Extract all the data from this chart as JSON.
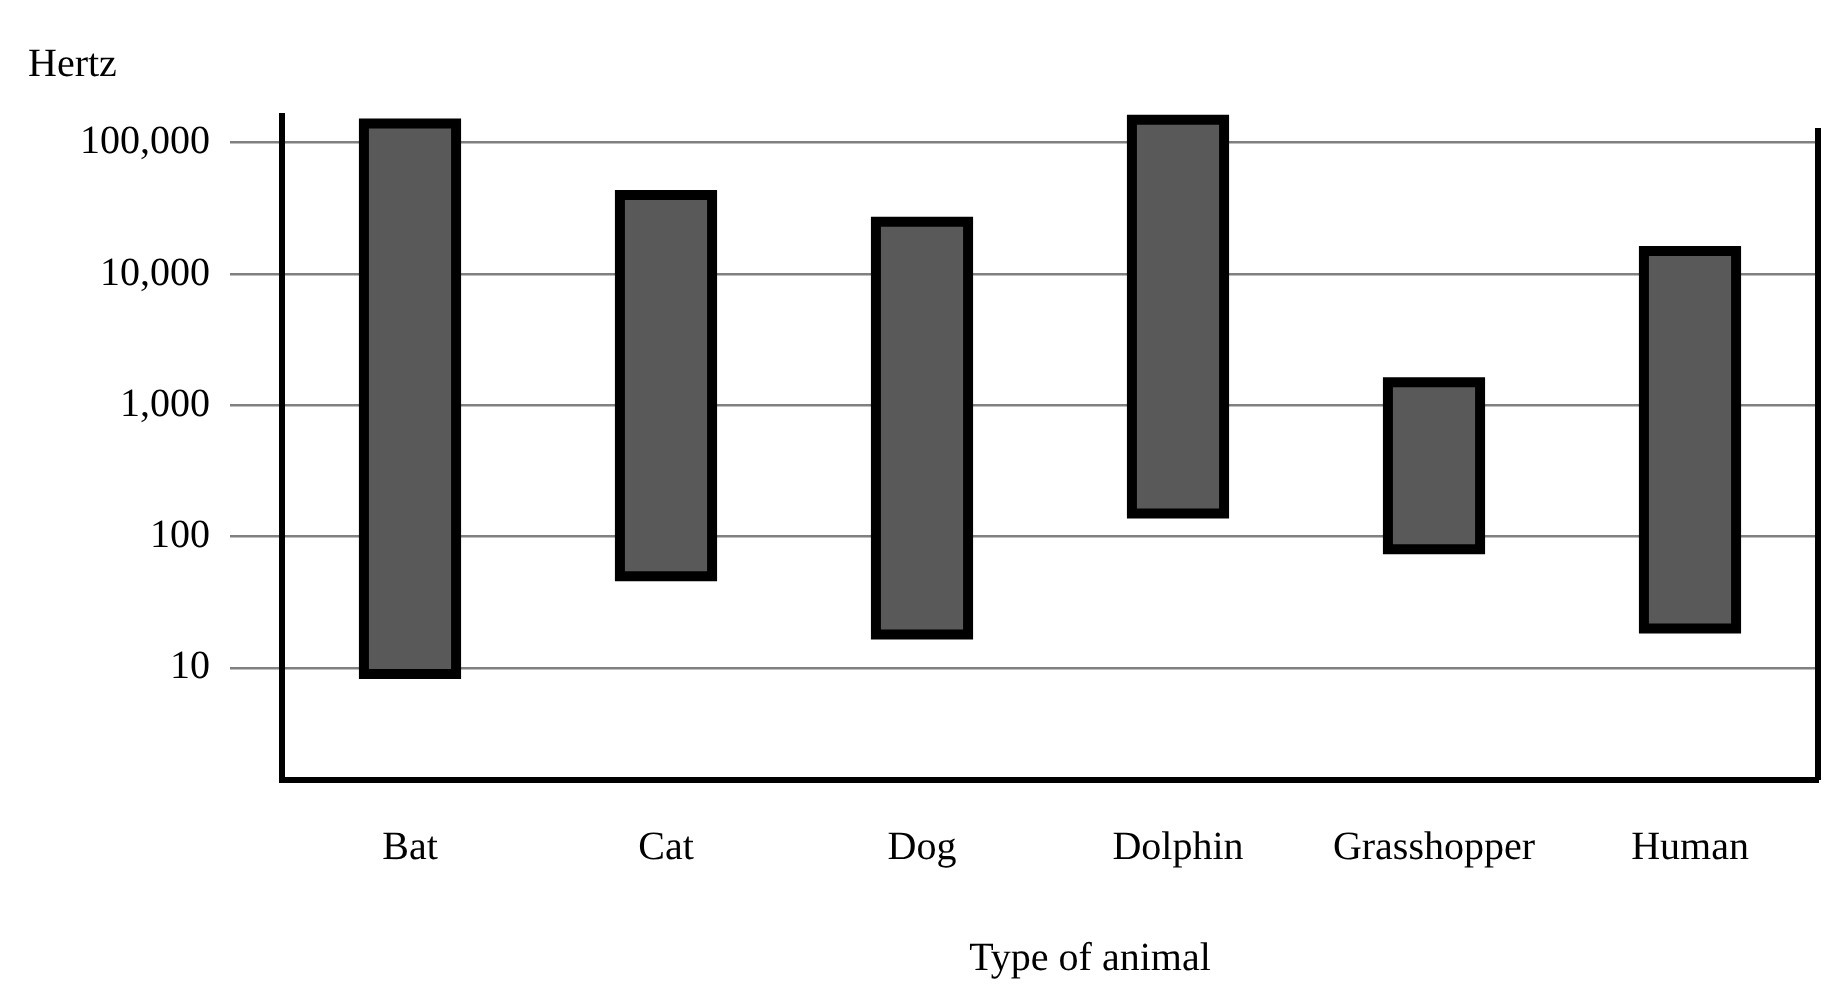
{
  "chart_data": {
    "type": "bar",
    "ylabel": "Hertz",
    "xlabel": "Type of animal",
    "categories": [
      "Bat",
      "Cat",
      "Dog",
      "Dolphin",
      "Grasshopper",
      "Human"
    ],
    "base": [
      9,
      50,
      18,
      150,
      80,
      20
    ],
    "values": [
      139991,
      39950,
      24982,
      149850,
      1420,
      14980
    ],
    "color": "#595959",
    "log": true,
    "ylim": [
      1.4,
      160000
    ],
    "yticks": [
      10,
      100,
      {
        "value": 1000,
        "label": "1,000"
      },
      {
        "value": 10000,
        "label": "10,000"
      },
      {
        "value": 100000,
        "label": "100,000"
      }
    ],
    "grid": "y",
    "legend": false
  }
}
